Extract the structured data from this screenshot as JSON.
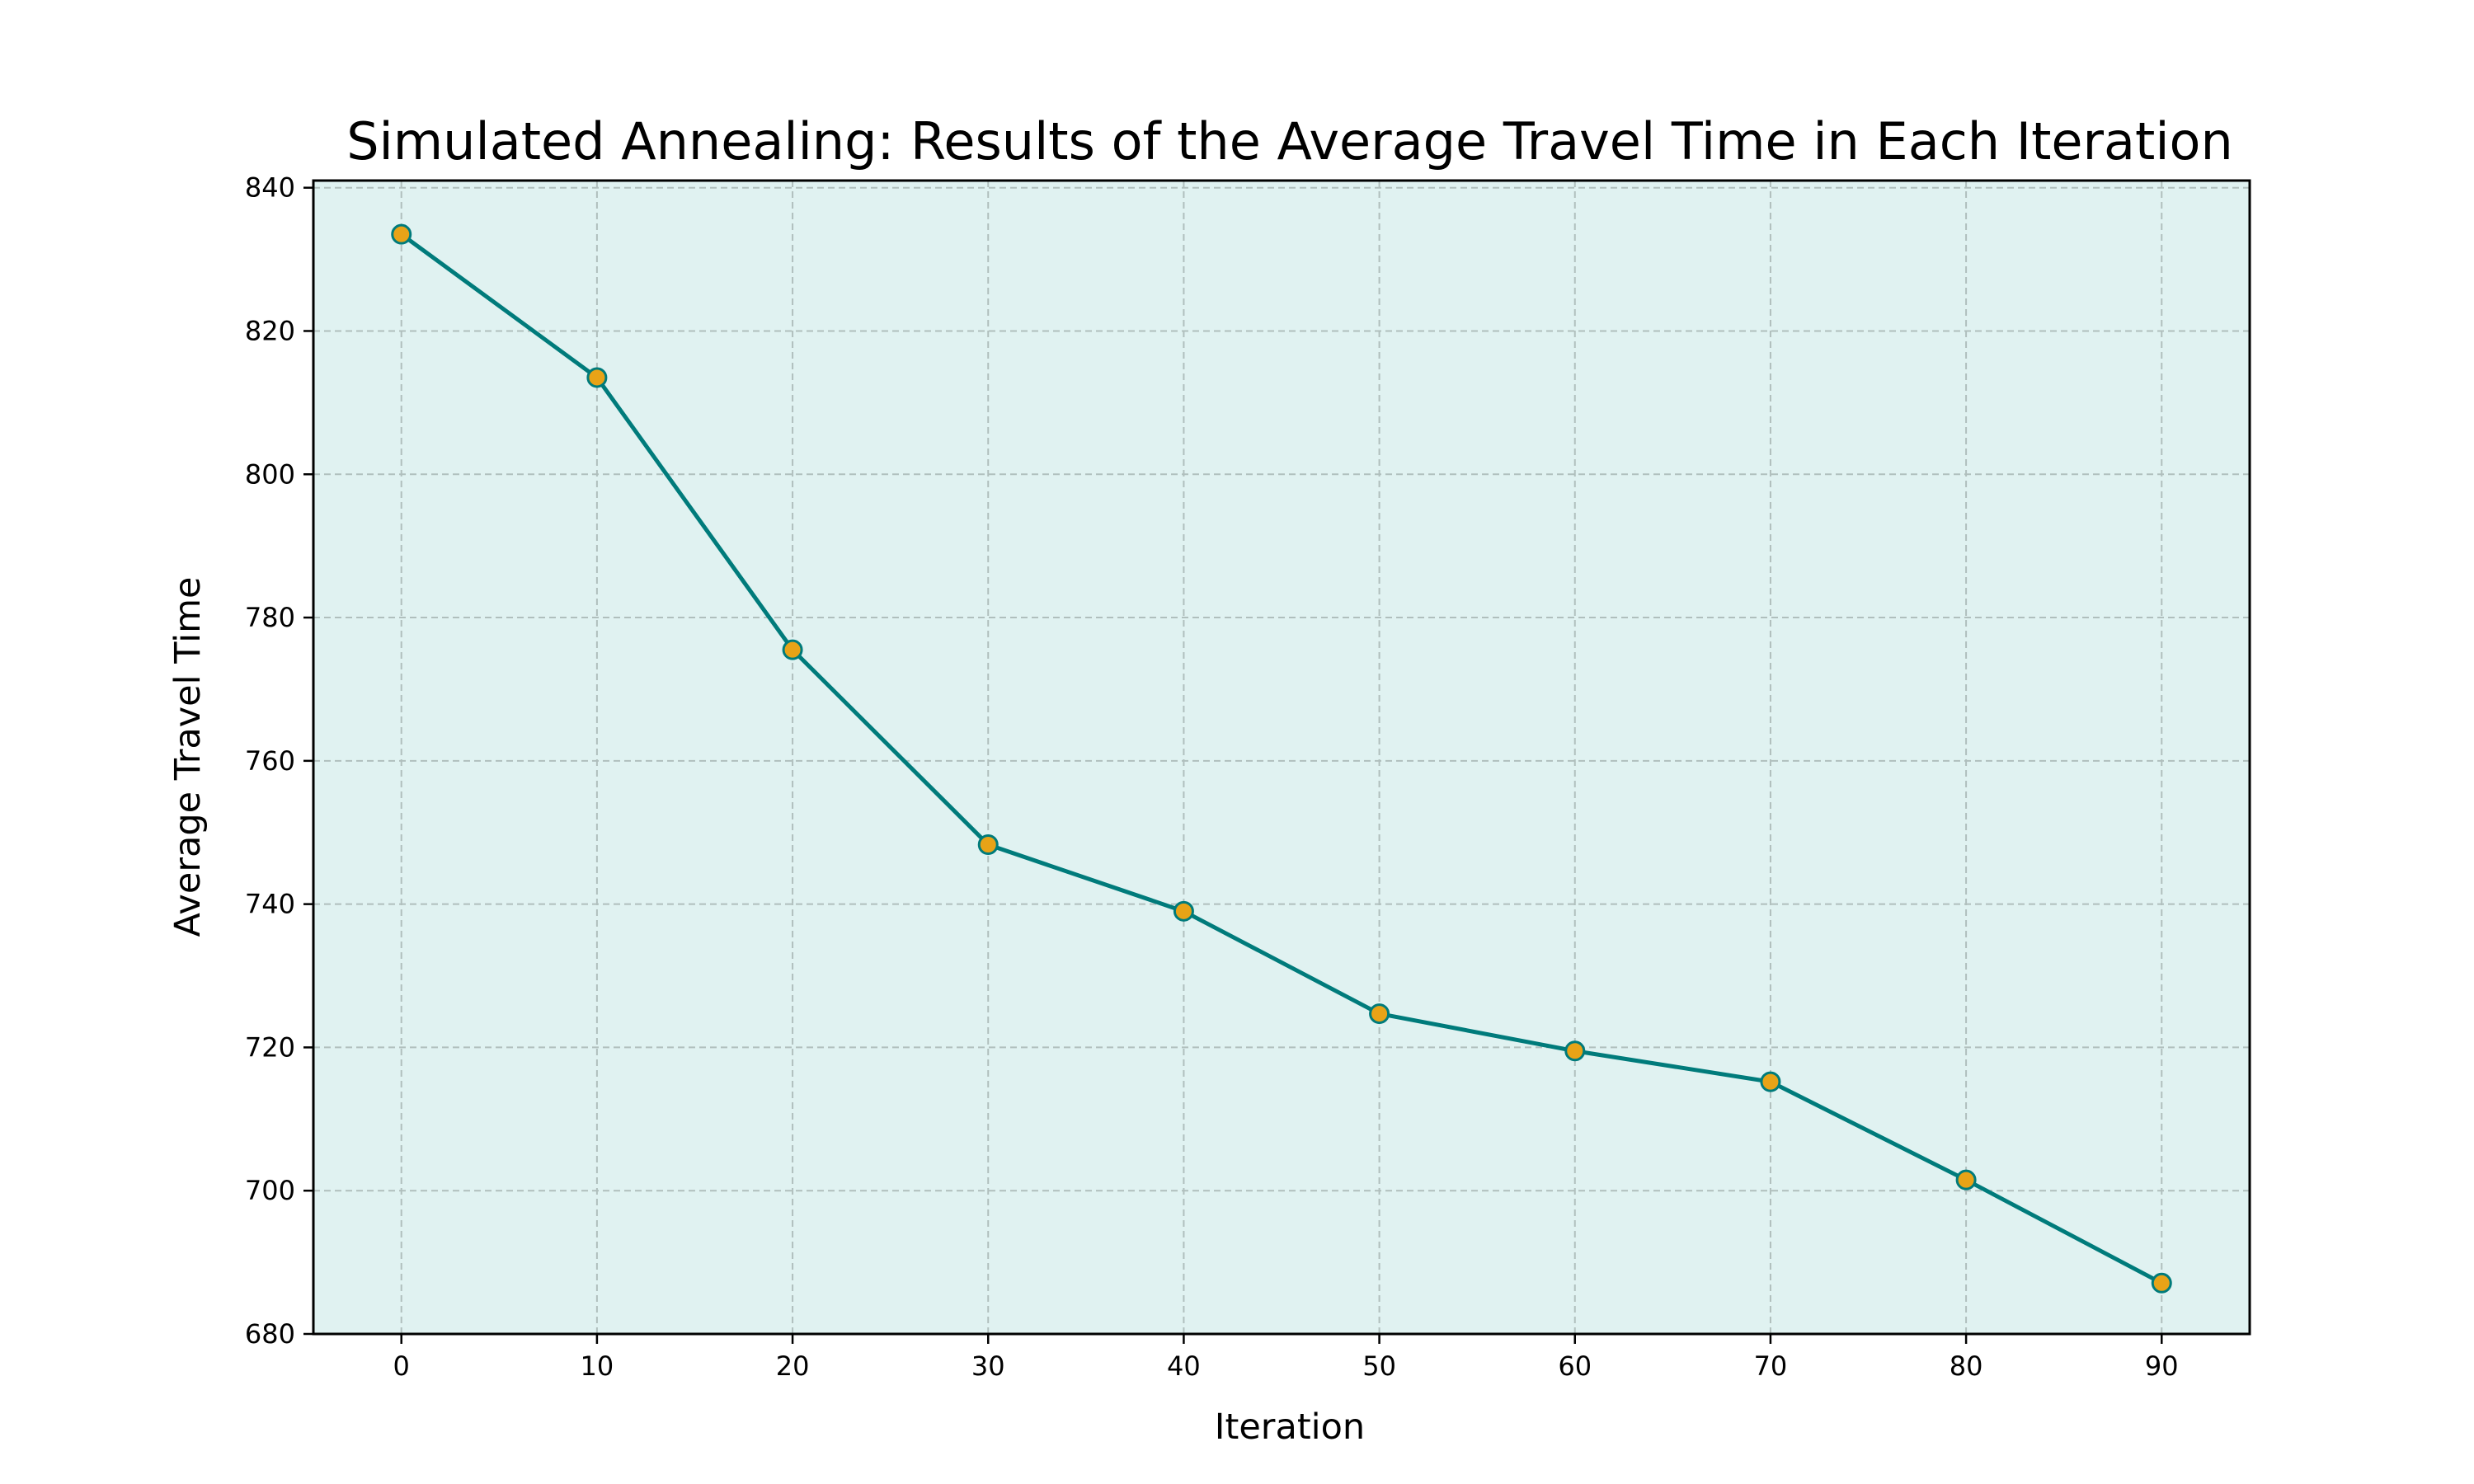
{
  "chart_data": {
    "type": "line",
    "title": "Simulated Annealing: Results of the Average Travel Time in Each Iteration",
    "xlabel": "Iteration",
    "ylabel": "Average Travel Time",
    "x": [
      0,
      10,
      20,
      30,
      40,
      50,
      60,
      70,
      80,
      90
    ],
    "y": [
      833.5,
      813.5,
      775.5,
      748.3,
      739.0,
      724.7,
      719.5,
      715.2,
      701.5,
      687.1
    ],
    "xlim": [
      -4.5,
      94.5
    ],
    "ylim": [
      680,
      841
    ],
    "xticks": [
      0,
      10,
      20,
      30,
      40,
      50,
      60,
      70,
      80,
      90
    ],
    "yticks": [
      680,
      700,
      720,
      740,
      760,
      780,
      800,
      820,
      840
    ],
    "grid": true,
    "line_color": "#007b7b",
    "marker_color": "#e8a317",
    "background_color": "#e0f2f1"
  }
}
